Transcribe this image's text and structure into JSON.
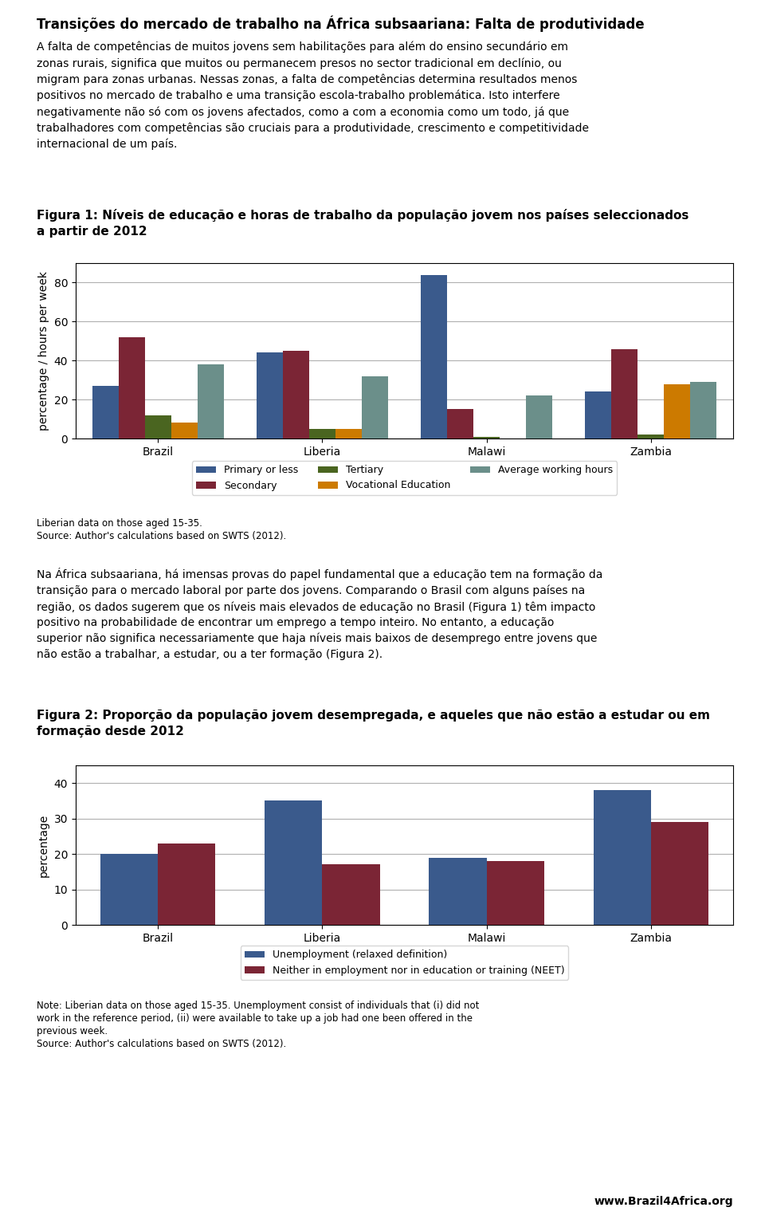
{
  "title": "Transições do mercado de trabalho na África subsaariana: Falta de produtividade",
  "annotations": [
    "A falta de competências de muitos jovens sem habilitações para além do ensino secundário em\nzonas rurais, significa que muitos ou permanecem presos no sector tradicional em declínio, ou\nmigram para zonas urbanas. Nessas zonas, a falta de competências determina resultados menos\npositivos no mercado de trabalho e uma transição escola-trabalho problemática. Isto interfere\nnegativamente não só com os jovens afectados, como a com a economia como um todo, já que\ntrabalhadores com competências são cruciais para a produtividade, crescimento e competitividade\ninternacional de um país.",
    "Na África subsaariana, há imensas provas do papel fundamental que a educação tem na formação da\ntransição para o mercado laboral por parte dos jovens. Comparando o Brasil com alguns países na\nregião, os dados sugerem que os níveis mais elevados de educação no Brasil (Figura 1) têm impacto\npositivo na probabilidade de encontrar um emprego a tempo inteiro. No entanto, a educação\nsuperior não significa necessariamente que haja níveis mais baixos de desemprego entre jovens que\nnão estão a trabalhar, a estudar, ou a ter formação (Figura 2).",
    "www.Brazil4Africa.org"
  ],
  "chart_data": [
    {
      "type": "bar",
      "title": "Figura 1: Níveis de educação e horas de trabalho da população jovem nos países seleccionados\na partir de 2012",
      "categories": [
        "Brazil",
        "Liberia",
        "Malawi",
        "Zambia"
      ],
      "series": [
        {
          "name": "Primary or less",
          "color": "#3A5A8C",
          "values": [
            27,
            44,
            84,
            24
          ]
        },
        {
          "name": "Secondary",
          "color": "#7B2535",
          "values": [
            52,
            45,
            15,
            46
          ]
        },
        {
          "name": "Tertiary",
          "color": "#4A6520",
          "values": [
            12,
            5,
            1,
            2
          ]
        },
        {
          "name": "Vocational Education",
          "color": "#CC7A00",
          "values": [
            8,
            5,
            0,
            28
          ]
        },
        {
          "name": "Average working hours",
          "color": "#6B8F8A",
          "values": [
            38,
            32,
            22,
            29
          ]
        }
      ],
      "ylabel": "percentage / hours per week",
      "ylim": [
        0,
        90
      ],
      "yticks": [
        0,
        20,
        40,
        60,
        80
      ],
      "grid": true,
      "legend": "upper center",
      "annotations": [
        "Liberian data on those aged 15-35.",
        "Source: Author's calculations based on SWTS (2012)."
      ]
    },
    {
      "type": "bar",
      "title": "Figura 2: Proporção da população jovem desempregada, e aqueles que não estão a estudar ou em\nformação desde 2012",
      "categories": [
        "Brazil",
        "Liberia",
        "Malawi",
        "Zambia"
      ],
      "series": [
        {
          "name": "Unemployment (relaxed definition)",
          "color": "#3A5A8C",
          "values": [
            20,
            35,
            19,
            38
          ]
        },
        {
          "name": "Neither in employment nor in education or training (NEET)",
          "color": "#7B2535",
          "values": [
            23,
            17,
            18,
            29
          ]
        }
      ],
      "ylabel": "percentage",
      "ylim": [
        0,
        45
      ],
      "yticks": [
        0,
        10,
        20,
        30,
        40
      ],
      "grid": true,
      "legend": "upper center",
      "annotations": [
        "Note: Liberian data on those aged 15-35. Unemployment consist of individuals that (i) did not\nwork in the reference period, (ii) were available to take up a job had one been offered in the\nprevious week.\nSource: Author's calculations based on SWTS (2012)."
      ]
    }
  ]
}
